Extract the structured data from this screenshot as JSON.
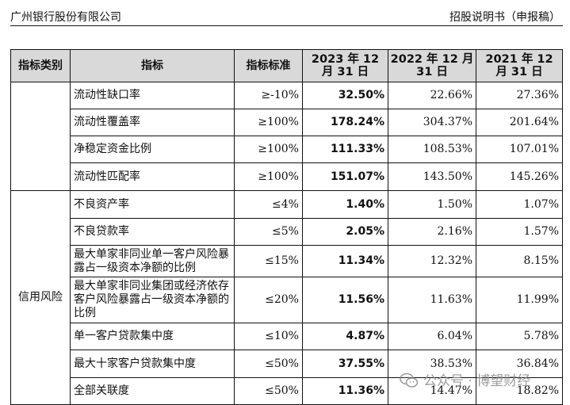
{
  "header": {
    "left": "广州银行股份有限公司",
    "right": "招股说明书（申报稿）"
  },
  "table": {
    "columns": [
      "指标类别",
      "指标",
      "指标标准",
      "2023 年 12 月 31 日",
      "2022 年 12 月 31 日",
      "2021 年 12 月 31 日"
    ],
    "groups": [
      {
        "category": "",
        "rows": [
          {
            "indicator": "流动性缺口率",
            "standard": "≥-10%",
            "y2023": "32.50%",
            "y2022": "22.66%",
            "y2021": "27.36%"
          },
          {
            "indicator": "流动性覆盖率",
            "standard": "≥100%",
            "y2023": "178.24%",
            "y2022": "304.37%",
            "y2021": "201.64%"
          },
          {
            "indicator": "净稳定资金比例",
            "standard": "≥100%",
            "y2023": "111.33%",
            "y2022": "108.53%",
            "y2021": "107.01%"
          },
          {
            "indicator": "流动性匹配率",
            "standard": "≥100%",
            "y2023": "151.07%",
            "y2022": "143.50%",
            "y2021": "145.26%"
          }
        ]
      },
      {
        "category": "信用风险",
        "rows": [
          {
            "indicator": "不良资产率",
            "standard": "≤4%",
            "y2023": "1.40%",
            "y2022": "1.50%",
            "y2021": "1.07%"
          },
          {
            "indicator": "不良贷款率",
            "standard": "≤5%",
            "y2023": "2.05%",
            "y2022": "2.16%",
            "y2021": "1.57%"
          },
          {
            "indicator": "最大单家非同业单一客户风险暴露占一级资本净额的比例",
            "standard": "≤15%",
            "y2023": "11.34%",
            "y2022": "12.32%",
            "y2021": "8.15%"
          },
          {
            "indicator": "最大单家非同业集团或经济依存客户风险暴露占一级资本净额的比例",
            "standard": "≤20%",
            "y2023": "11.56%",
            "y2022": "11.63%",
            "y2021": "11.99%"
          },
          {
            "indicator": "单一客户贷款集中度",
            "standard": "≤10%",
            "y2023": "4.87%",
            "y2022": "6.04%",
            "y2021": "5.78%"
          },
          {
            "indicator": "最大十家客户贷款集中度",
            "standard": "≤50%",
            "y2023": "37.55%",
            "y2022": "38.53%",
            "y2021": "36.84%"
          },
          {
            "indicator": "全部关联度",
            "standard": "≤50%",
            "y2023": "11.36%",
            "y2022": "14.47%",
            "y2021": "18.82%"
          }
        ]
      }
    ]
  },
  "watermark": {
    "text": "公众号 · 博望财经",
    "icon": "wechat-icon"
  }
}
